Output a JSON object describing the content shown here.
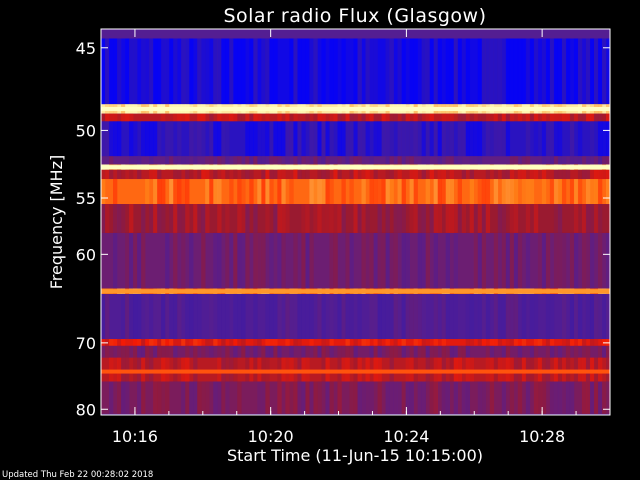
{
  "chart_data": {
    "type": "heatmap",
    "title": "Solar radio Flux (Glasgow)",
    "xlabel": "Start Time (11-Jun-15 10:15:00)",
    "ylabel": "Frequency [MHz]",
    "x_ticks": [
      "10:16",
      "10:20",
      "10:24",
      "10:28"
    ],
    "x_tick_minutes": [
      1,
      5,
      9,
      13
    ],
    "xlim_minutes": [
      0,
      15
    ],
    "y_ticks": [
      45,
      50,
      55,
      60,
      70,
      80
    ],
    "ylim": [
      44,
      81
    ],
    "y_scale": "reciprocal",
    "colormap": [
      "#0000ff",
      "#3a1aa8",
      "#5a1f8c",
      "#9a1a30",
      "#ff1a00",
      "#ff8c1a",
      "#ffffc0"
    ],
    "bands": [
      {
        "f_start": 44.5,
        "f_end": 48.3,
        "level": 0.05
      },
      {
        "f_start": 48.3,
        "f_end": 48.9,
        "level": 0.97
      },
      {
        "f_start": 48.9,
        "f_end": 49.4,
        "level": 0.55
      },
      {
        "f_start": 49.4,
        "f_end": 51.8,
        "level": 0.12
      },
      {
        "f_start": 51.8,
        "f_end": 52.4,
        "level": 0.35
      },
      {
        "f_start": 52.4,
        "f_end": 52.8,
        "level": 0.95
      },
      {
        "f_start": 52.8,
        "f_end": 53.5,
        "level": 0.55
      },
      {
        "f_start": 53.5,
        "f_end": 55.5,
        "level": 0.78
      },
      {
        "f_start": 55.5,
        "f_end": 58.0,
        "level": 0.5
      },
      {
        "f_start": 58.0,
        "f_end": 63.5,
        "level": 0.38
      },
      {
        "f_start": 63.5,
        "f_end": 64.1,
        "level": 0.82
      },
      {
        "f_start": 64.1,
        "f_end": 69.5,
        "level": 0.28
      },
      {
        "f_start": 69.5,
        "f_end": 70.4,
        "level": 0.62
      },
      {
        "f_start": 70.4,
        "f_end": 72.0,
        "level": 0.4
      },
      {
        "f_start": 72.0,
        "f_end": 75.5,
        "level": 0.55
      },
      {
        "f_start": 75.5,
        "f_end": 80.8,
        "level": 0.42
      }
    ],
    "bright_lines": [
      {
        "freq": 48.6,
        "level": 1.0
      },
      {
        "freq": 52.6,
        "level": 1.0
      },
      {
        "freq": 63.8,
        "level": 0.85
      },
      {
        "freq": 74.0,
        "level": 0.75
      }
    ]
  },
  "footer": "Updated Thu Feb 22 00:28:02 2018"
}
